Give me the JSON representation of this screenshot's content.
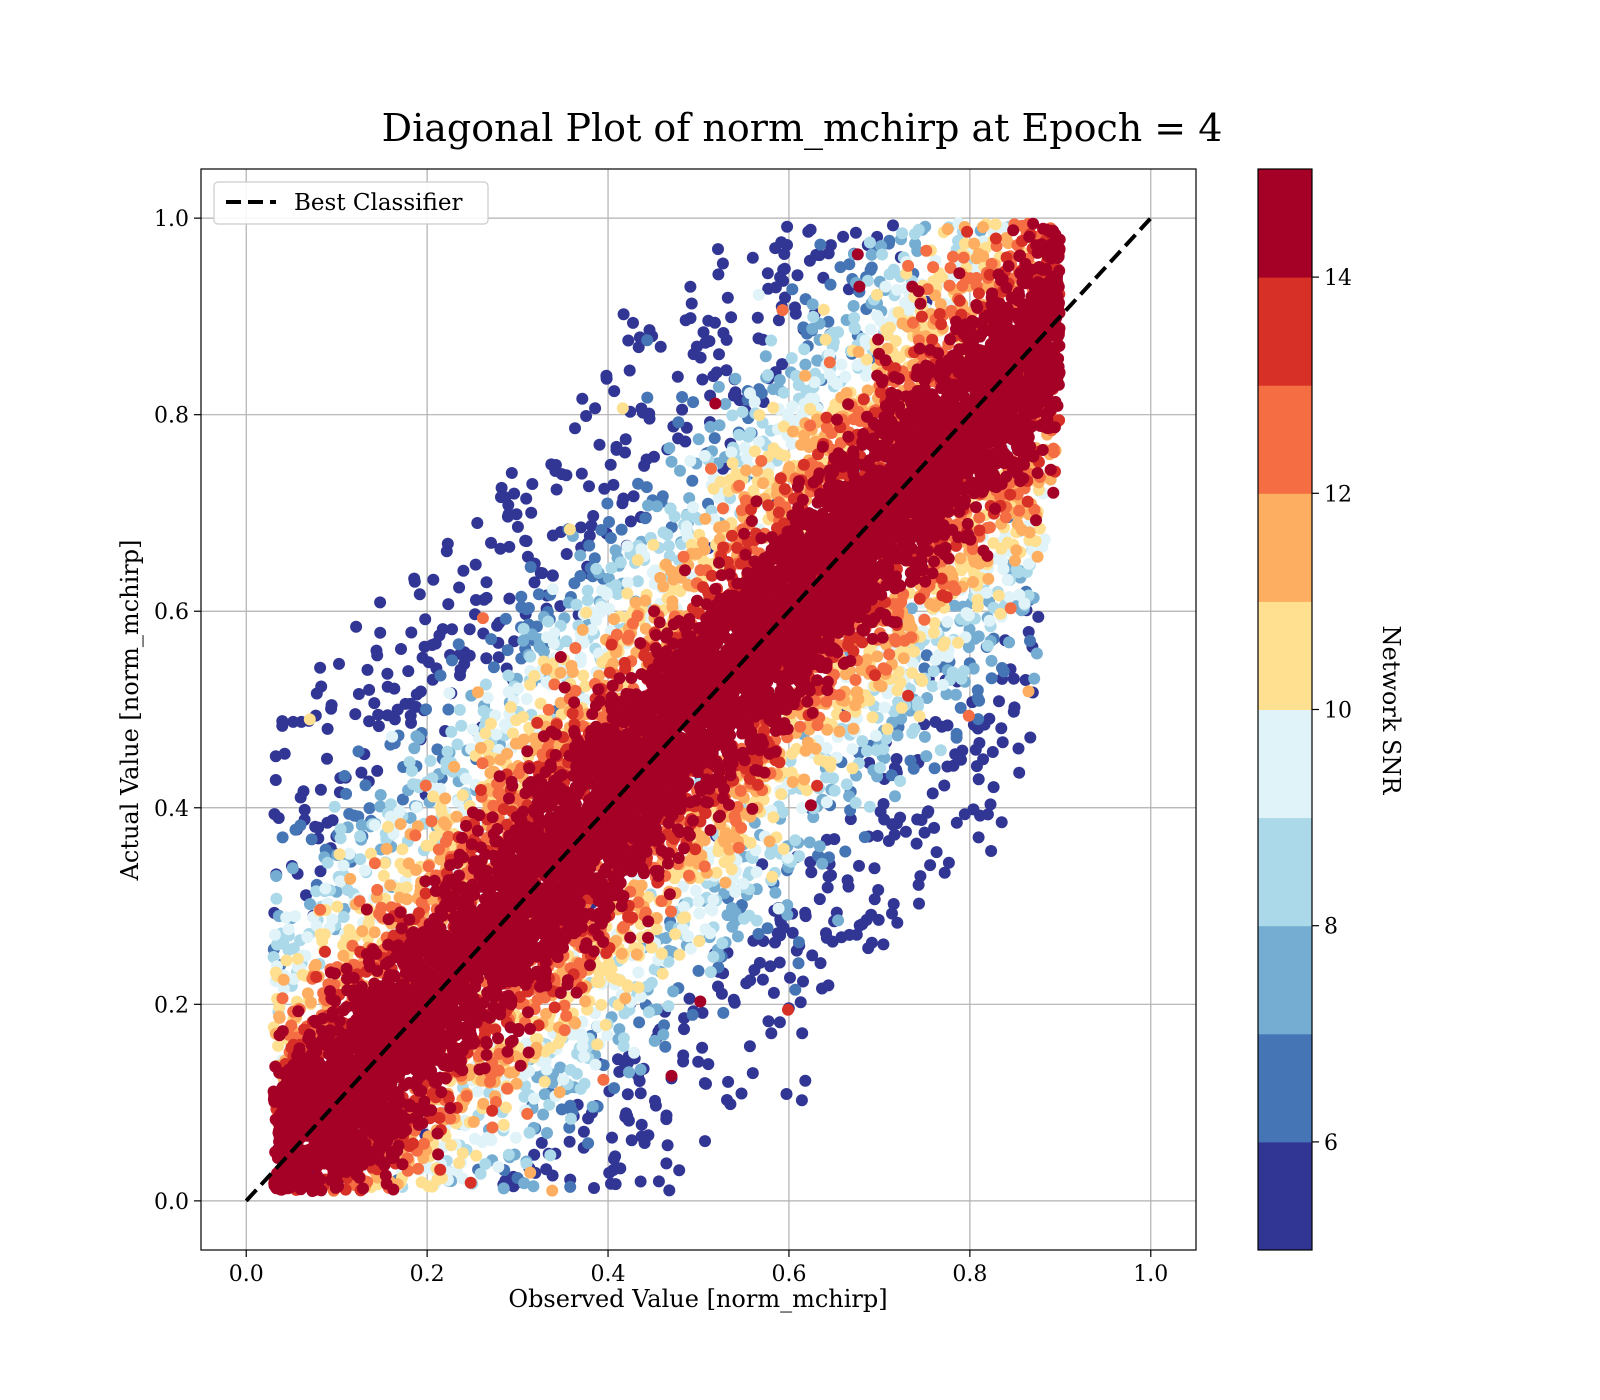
{
  "chart_data": {
    "type": "scatter",
    "title": "Diagonal Plot of norm_mchirp at Epoch = 4",
    "xlabel": "Observed Value [norm_mchirp]",
    "ylabel": "Actual Value [norm_mchirp]",
    "xlim": [
      -0.05,
      1.05
    ],
    "ylim": [
      -0.05,
      1.05
    ],
    "x_ticks": [
      0.0,
      0.2,
      0.4,
      0.6,
      0.8,
      1.0
    ],
    "y_ticks": [
      0.0,
      0.2,
      0.4,
      0.6,
      0.8,
      1.0
    ],
    "x_tick_labels": [
      "0.0",
      "0.2",
      "0.4",
      "0.6",
      "0.8",
      "1.0"
    ],
    "y_tick_labels": [
      "0.0",
      "0.2",
      "0.4",
      "0.6",
      "0.8",
      "1.0"
    ],
    "grid": true,
    "legend": {
      "placement": "top-left",
      "entries": [
        "Best Classifier"
      ]
    },
    "reference_line": {
      "name": "Best Classifier",
      "x": [
        0.0,
        1.0
      ],
      "y": [
        0.0,
        1.0
      ],
      "style": "dashed",
      "color": "#000000"
    },
    "colorbar": {
      "label": "Network SNR",
      "range": [
        5,
        15
      ],
      "ticks": [
        6,
        8,
        10,
        12,
        14
      ],
      "tick_labels": [
        "6",
        "8",
        "10",
        "12",
        "14"
      ],
      "colors": [
        "#313695",
        "#4575b4",
        "#74add1",
        "#abd9e9",
        "#e0f3f8",
        "#fee090",
        "#fdae61",
        "#f46d43",
        "#d73027",
        "#a50026"
      ]
    },
    "point_cloud": {
      "x_range": [
        0.03,
        0.91
      ],
      "y_range": [
        0.0,
        1.0
      ],
      "description_values": {
        "high_snr_band_halfwidth": 0.07,
        "max_deviation": 0.45
      }
    }
  }
}
